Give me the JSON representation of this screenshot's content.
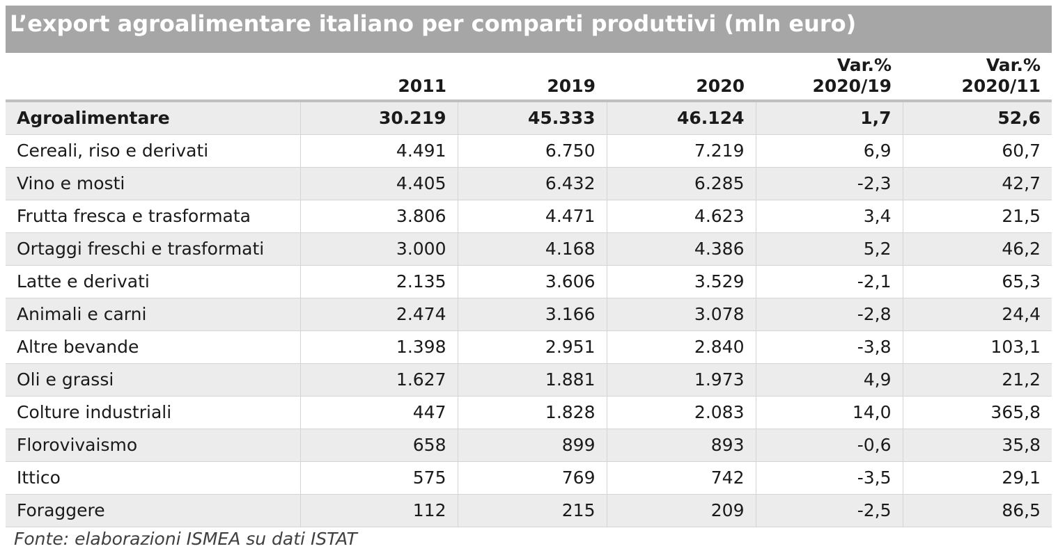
{
  "chart_data": {
    "type": "table",
    "title": "L’export agroalimentare italiano per comparti produttivi (mln euro)",
    "columns": [
      {
        "line1": "",
        "line2": ""
      },
      {
        "line1": "",
        "line2": "2011"
      },
      {
        "line1": "",
        "line2": "2019"
      },
      {
        "line1": "",
        "line2": "2020"
      },
      {
        "line1": "Var.%",
        "line2": "2020/19"
      },
      {
        "line1": "Var.%",
        "line2": "2020/11"
      }
    ],
    "rows": [
      {
        "category": "Agroalimentare",
        "y2011": "30.219",
        "y2019": "45.333",
        "y2020": "46.124",
        "var_2020_19": "1,7",
        "var_2020_11": "52,6"
      },
      {
        "category": "Cereali, riso e derivati",
        "y2011": "4.491",
        "y2019": "6.750",
        "y2020": "7.219",
        "var_2020_19": "6,9",
        "var_2020_11": "60,7"
      },
      {
        "category": "Vino e mosti",
        "y2011": "4.405",
        "y2019": "6.432",
        "y2020": "6.285",
        "var_2020_19": "-2,3",
        "var_2020_11": "42,7"
      },
      {
        "category": "Frutta fresca e trasformata",
        "y2011": "3.806",
        "y2019": "4.471",
        "y2020": "4.623",
        "var_2020_19": "3,4",
        "var_2020_11": "21,5"
      },
      {
        "category": "Ortaggi freschi e trasformati",
        "y2011": "3.000",
        "y2019": "4.168",
        "y2020": "4.386",
        "var_2020_19": "5,2",
        "var_2020_11": "46,2"
      },
      {
        "category": "Latte e derivati",
        "y2011": "2.135",
        "y2019": "3.606",
        "y2020": "3.529",
        "var_2020_19": "-2,1",
        "var_2020_11": "65,3"
      },
      {
        "category": "Animali e carni",
        "y2011": "2.474",
        "y2019": "3.166",
        "y2020": "3.078",
        "var_2020_19": "-2,8",
        "var_2020_11": "24,4"
      },
      {
        "category": "Altre bevande",
        "y2011": "1.398",
        "y2019": "2.951",
        "y2020": "2.840",
        "var_2020_19": "-3,8",
        "var_2020_11": "103,1"
      },
      {
        "category": "Oli e grassi",
        "y2011": "1.627",
        "y2019": "1.881",
        "y2020": "1.973",
        "var_2020_19": "4,9",
        "var_2020_11": "21,2"
      },
      {
        "category": "Colture industriali",
        "y2011": "447",
        "y2019": "1.828",
        "y2020": "2.083",
        "var_2020_19": "14,0",
        "var_2020_11": "365,8"
      },
      {
        "category": "Florovivaismo",
        "y2011": "658",
        "y2019": "899",
        "y2020": "893",
        "var_2020_19": "-0,6",
        "var_2020_11": "35,8"
      },
      {
        "category": "Ittico",
        "y2011": "575",
        "y2019": "769",
        "y2020": "742",
        "var_2020_19": "-3,5",
        "var_2020_11": "29,1"
      },
      {
        "category": "Foraggere",
        "y2011": "112",
        "y2019": "215",
        "y2020": "209",
        "var_2020_19": "-2,5",
        "var_2020_11": "86,5"
      }
    ],
    "source": "Fonte: elaborazioni ISMEA su dati ISTAT"
  },
  "colors": {
    "title_background": "#a6a6a6",
    "title_text": "#ffffff",
    "shaded_row": "#ececec",
    "grid_line": "#d4d4d4"
  }
}
